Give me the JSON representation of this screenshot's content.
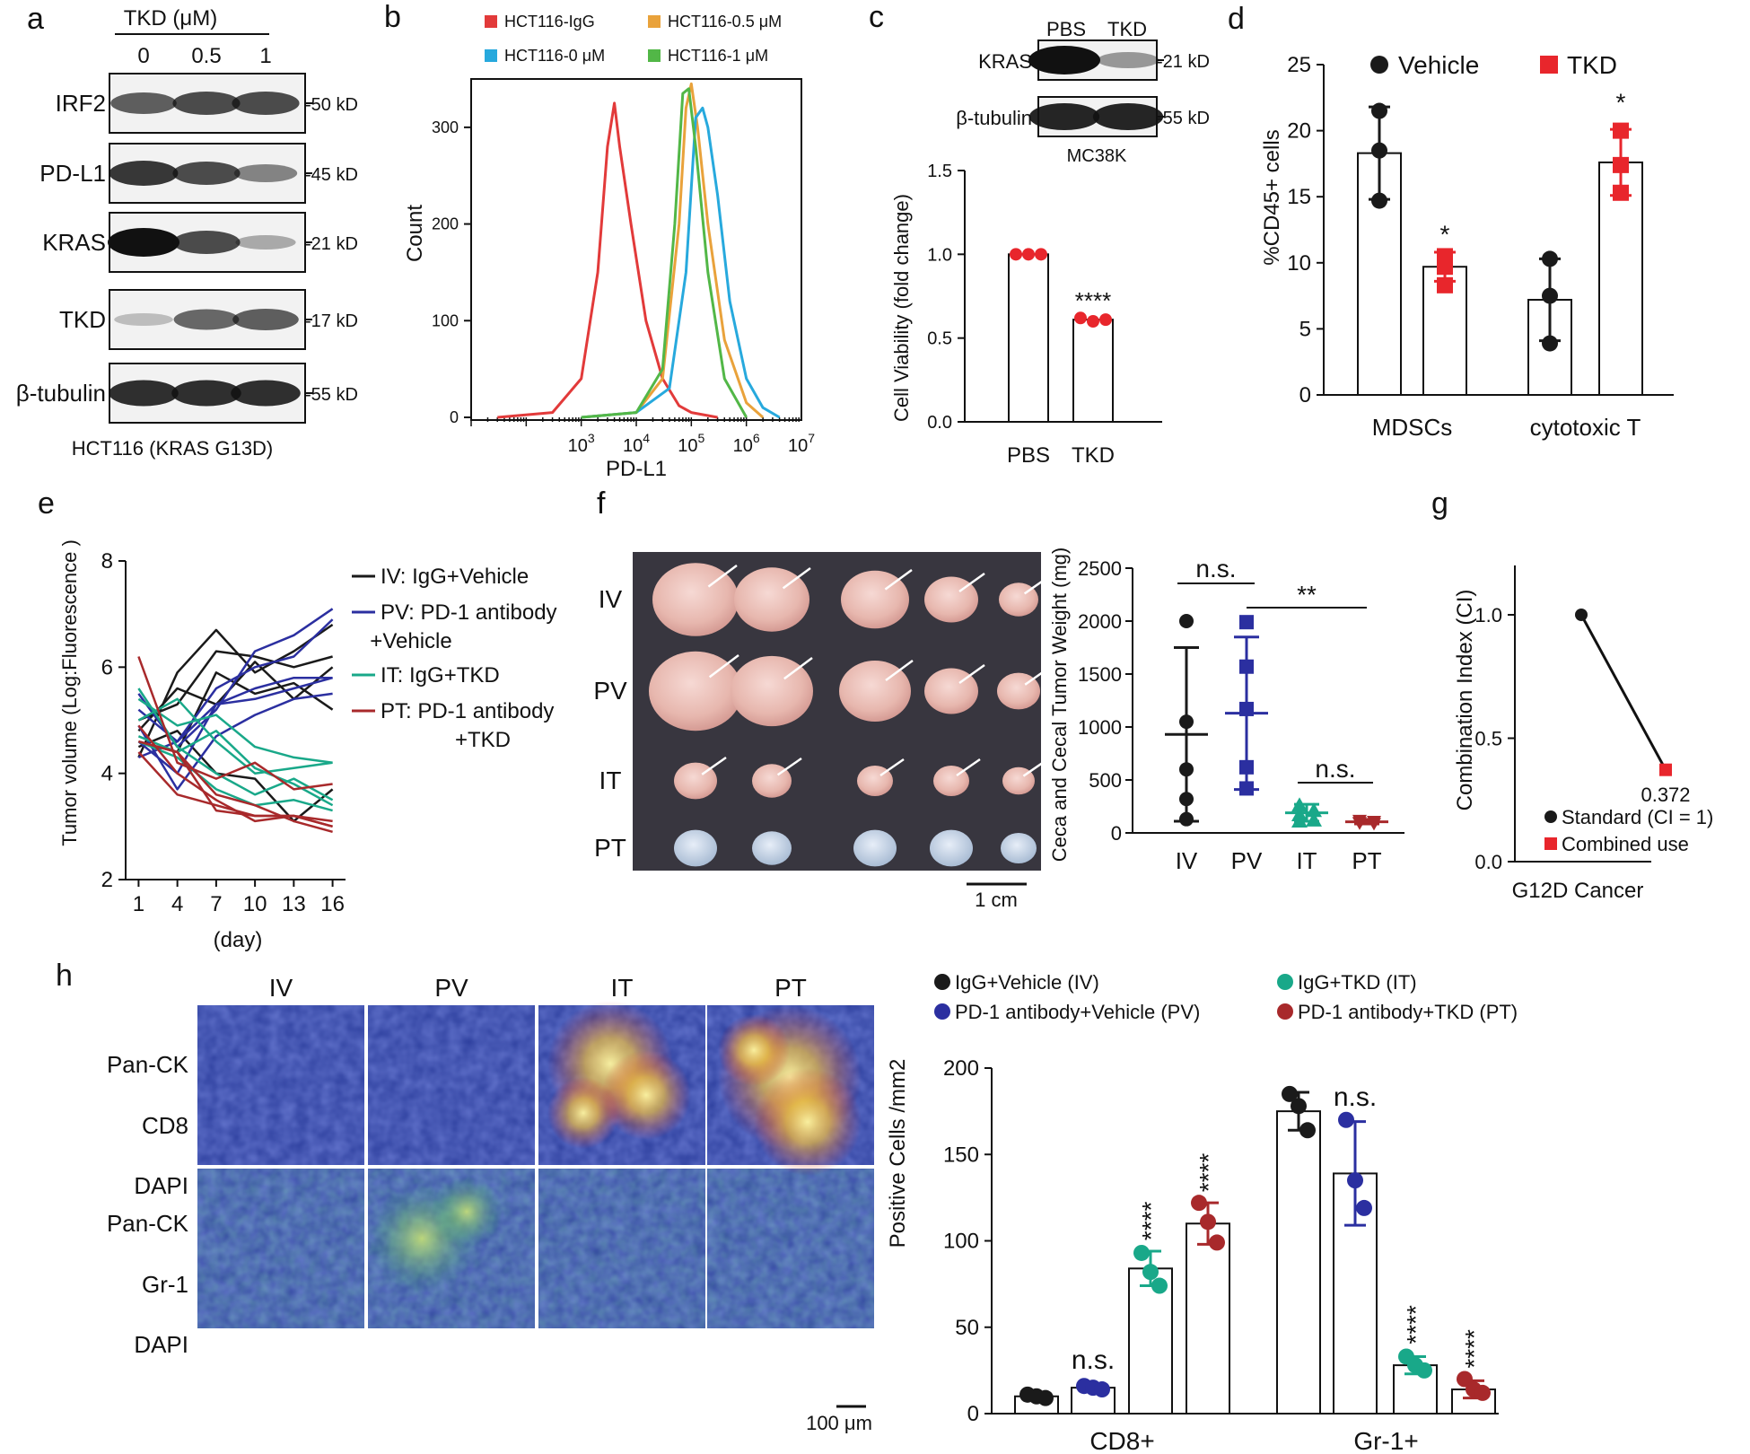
{
  "colors": {
    "red": "#e23a3a",
    "orange": "#e9a23b",
    "cyan": "#27a9dd",
    "green": "#52b747",
    "black": "#1a1a1a",
    "navy": "#2b2fa0",
    "teal": "#19a889",
    "darkred": "#a8292b",
    "d_red": "#e8262c",
    "blot_bg": "#f2f2f2",
    "dapi_blue": "#2b3d9c"
  },
  "panel_a": {
    "label": "a",
    "header": "TKD (μM)",
    "lanes": [
      "0",
      "0.5",
      "1"
    ],
    "rows": [
      {
        "name": "IRF2",
        "size": "50 kD",
        "intensity": [
          0.6,
          0.7,
          0.7
        ]
      },
      {
        "name": "PD-L1",
        "size": "45 kD",
        "intensity": [
          0.8,
          0.7,
          0.4
        ]
      },
      {
        "name": "KRAS",
        "size": "21 kD",
        "intensity": [
          1.0,
          0.7,
          0.2
        ]
      },
      {
        "name": "TKD",
        "size": "17 kD",
        "intensity": [
          0.1,
          0.55,
          0.6
        ]
      },
      {
        "name": "β-tubulin",
        "size": "55 kD",
        "intensity": [
          0.85,
          0.85,
          0.85
        ]
      }
    ],
    "caption": "HCT116 (KRAS G13D)"
  },
  "panel_c_blot": {
    "label": "c",
    "lanes": [
      "PBS",
      "TKD"
    ],
    "rows": [
      {
        "name": "KRAS",
        "size": "21 kD",
        "intensity": [
          1.0,
          0.3
        ]
      },
      {
        "name": "β-tubulin",
        "size": "55 kD",
        "intensity": [
          0.9,
          0.9
        ]
      }
    ],
    "caption": "MC38K"
  },
  "panel_f": {
    "label": "f",
    "photo_rows": [
      "IV",
      "PV",
      "IT",
      "PT"
    ],
    "scale_bar": "1 cm"
  },
  "panel_h": {
    "label": "h",
    "columns": [
      "IV",
      "PV",
      "IT",
      "PT"
    ],
    "top_stain": [
      {
        "text": "Pan-CK",
        "color": "#d93333"
      },
      {
        "text": "CD8",
        "color": "#1ea36b"
      },
      {
        "text": "DAPI",
        "color": "#2b2fa0"
      }
    ],
    "bottom_stain": [
      {
        "text": "Pan-CK",
        "color": "#1ea36b"
      },
      {
        "text": "Gr-1",
        "color": "#d93333"
      },
      {
        "text": "DAPI",
        "color": "#2b2fa0"
      }
    ],
    "scale_bar": "100 μm"
  },
  "chart_data": [
    {
      "id": "b",
      "type": "line",
      "label": "b",
      "xlabel": "PD-L1",
      "ylabel": "Count",
      "xscale": "log",
      "xlim": [
        10,
        10000000
      ],
      "ylim": [
        0,
        350
      ],
      "xticks": [
        "10^3",
        "10^4",
        "10^5",
        "10^6",
        "10^7"
      ],
      "yticks": [
        0,
        100,
        200,
        300
      ],
      "legend": [
        "HCT116-IgG",
        "HCT116-0.5 μM",
        "HCT116-0 μM",
        "HCT116-1 μM"
      ],
      "series": [
        {
          "name": "HCT116-IgG",
          "color": "#e23a3a",
          "x": [
            30,
            300,
            1000,
            2000,
            3000,
            4000,
            5000,
            8000,
            15000,
            30000,
            60000,
            100000,
            300000
          ],
          "y": [
            0,
            5,
            40,
            150,
            280,
            325,
            280,
            200,
            100,
            40,
            12,
            5,
            0
          ]
        },
        {
          "name": "HCT116-0.5 μM",
          "color": "#e9a23b",
          "x": [
            1000,
            10000,
            30000,
            60000,
            80000,
            100000,
            130000,
            200000,
            400000,
            1000000,
            2000000
          ],
          "y": [
            0,
            5,
            40,
            200,
            320,
            345,
            300,
            200,
            80,
            15,
            0
          ]
        },
        {
          "name": "HCT116-0 μM",
          "color": "#27a9dd",
          "x": [
            1000,
            10000,
            40000,
            80000,
            120000,
            160000,
            200000,
            300000,
            500000,
            1000000,
            2000000,
            4000000
          ],
          "y": [
            0,
            5,
            30,
            150,
            310,
            320,
            300,
            230,
            120,
            40,
            10,
            0
          ]
        },
        {
          "name": "HCT116-1 μM",
          "color": "#52b747",
          "x": [
            1000,
            10000,
            30000,
            50000,
            70000,
            90000,
            120000,
            200000,
            400000,
            1000000
          ],
          "y": [
            0,
            5,
            50,
            200,
            335,
            340,
            280,
            150,
            40,
            0
          ]
        }
      ]
    },
    {
      "id": "c",
      "type": "bar",
      "label": "c",
      "ylabel": "Cell Viability (fold change)",
      "categories": [
        "PBS",
        "TKD"
      ],
      "values": [
        1.0,
        0.61
      ],
      "points": [
        [
          1.0,
          1.0,
          1.0
        ],
        [
          0.62,
          0.6,
          0.61
        ]
      ],
      "ylim": [
        0,
        1.5
      ],
      "yticks": [
        "0.0",
        "0.5",
        "1.0",
        "1.5"
      ],
      "annotations": [
        "****"
      ]
    },
    {
      "id": "d",
      "type": "bar",
      "label": "d",
      "ylabel": "%CD45+ cells",
      "categories": [
        "MDSCs",
        "cytotoxic T"
      ],
      "ylim": [
        0,
        25
      ],
      "yticks": [
        0,
        5,
        10,
        15,
        20,
        25
      ],
      "legend": [
        "Vehicle",
        "TKD"
      ],
      "annotations": [
        "*",
        "*"
      ],
      "series": [
        {
          "name": "Vehicle",
          "values": [
            18.3,
            7.2
          ],
          "error": [
            3.5,
            3.1
          ],
          "points": [
            [
              21.5,
              18.5,
              14.7
            ],
            [
              10.3,
              7.5,
              3.9
            ]
          ]
        },
        {
          "name": "TKD",
          "values": [
            9.7,
            17.6
          ],
          "error": [
            1.1,
            2.5
          ],
          "points": [
            [
              10.5,
              9.7,
              8.3
            ],
            [
              20.0,
              17.4,
              15.3
            ]
          ]
        }
      ]
    },
    {
      "id": "e",
      "type": "line",
      "label": "e",
      "xlabel": "(day)",
      "ylabel": "Tumor volume (Log:Fluorescence )",
      "x": [
        1,
        4,
        7,
        10,
        13,
        16
      ],
      "ylim": [
        2,
        8
      ],
      "yticks": [
        2,
        4,
        6,
        8
      ],
      "legend": [
        "IV: IgG+Vehicle",
        "PV: PD-1 antibody",
        "+Vehicle",
        "IT: IgG+TKD",
        "PT: PD-1 antibody",
        "+TKD"
      ],
      "series": [
        {
          "group": "IV",
          "values": [
            4.3,
            5.9,
            6.7,
            5.9,
            6.3,
            6.8
          ]
        },
        {
          "group": "IV",
          "values": [
            5.0,
            5.3,
            6.3,
            6.2,
            6.0,
            6.2
          ]
        },
        {
          "group": "IV",
          "values": [
            4.6,
            4.4,
            5.9,
            5.5,
            5.7,
            5.2
          ]
        },
        {
          "group": "IV",
          "values": [
            4.8,
            5.6,
            5.3,
            6.1,
            5.4,
            6.0
          ]
        },
        {
          "group": "IV",
          "values": [
            4.5,
            4.8,
            4.0,
            3.9,
            3.1,
            3.7
          ]
        },
        {
          "group": "PV",
          "values": [
            5.5,
            4.5,
            5.2,
            6.3,
            6.6,
            7.1
          ]
        },
        {
          "group": "PV",
          "values": [
            5.2,
            4.6,
            5.6,
            6.0,
            6.2,
            6.9
          ]
        },
        {
          "group": "PV",
          "values": [
            4.6,
            4.0,
            5.3,
            5.6,
            5.8,
            5.8
          ]
        },
        {
          "group": "PV",
          "values": [
            4.3,
            4.6,
            5.3,
            5.4,
            5.6,
            5.8
          ]
        },
        {
          "group": "PV",
          "values": [
            4.9,
            3.7,
            4.7,
            5.1,
            5.4,
            5.5
          ]
        },
        {
          "group": "IT",
          "values": [
            5.4,
            4.9,
            5.1,
            4.5,
            4.3,
            4.2
          ]
        },
        {
          "group": "IT",
          "values": [
            5.0,
            5.4,
            4.6,
            4.0,
            4.1,
            4.2
          ]
        },
        {
          "group": "IT",
          "values": [
            4.7,
            4.4,
            4.8,
            4.1,
            3.8,
            3.4
          ]
        },
        {
          "group": "IT",
          "values": [
            5.6,
            4.5,
            4.0,
            3.6,
            3.9,
            3.5
          ]
        },
        {
          "group": "IT",
          "values": [
            4.6,
            4.3,
            3.7,
            3.4,
            3.5,
            3.3
          ]
        },
        {
          "group": "PT",
          "values": [
            6.2,
            4.2,
            3.9,
            4.2,
            3.7,
            3.8
          ]
        },
        {
          "group": "PT",
          "values": [
            4.9,
            4.0,
            3.5,
            3.1,
            3.2,
            3.1
          ]
        },
        {
          "group": "PT",
          "values": [
            4.6,
            4.4,
            3.3,
            3.2,
            3.2,
            3.0
          ]
        },
        {
          "group": "PT",
          "values": [
            4.4,
            3.6,
            3.4,
            3.2,
            3.2,
            3.0
          ]
        },
        {
          "group": "PT",
          "values": [
            4.6,
            4.4,
            3.6,
            3.4,
            3.1,
            2.9
          ]
        }
      ]
    },
    {
      "id": "f",
      "type": "scatter",
      "label": "f",
      "ylabel": "Ceca and Cecal Tumor Weight (mg)",
      "categories": [
        "IV",
        "PV",
        "IT",
        "PT"
      ],
      "ylim": [
        0,
        2500
      ],
      "yticks": [
        0,
        500,
        1000,
        1500,
        2000,
        2500
      ],
      "annotations": [
        "n.s.",
        "**",
        "n.s."
      ],
      "groups": [
        {
          "name": "IV",
          "mean": 930,
          "sd": 820,
          "points": [
            2000,
            1050,
            600,
            320,
            130
          ]
        },
        {
          "name": "PV",
          "mean": 1130,
          "sd": 720,
          "points": [
            1990,
            1570,
            1170,
            620,
            420
          ]
        },
        {
          "name": "IT",
          "mean": 190,
          "sd": 80,
          "points": [
            260,
            210,
            170,
            120,
            110
          ]
        },
        {
          "name": "PT",
          "mean": 105,
          "sd": 20,
          "points": [
            120,
            110,
            100,
            90,
            95
          ]
        }
      ]
    },
    {
      "id": "g",
      "type": "scatter",
      "label": "g",
      "xlabel": "G12D Cancer",
      "ylabel": "Combination Index (CI)",
      "ylim": [
        0,
        1.2
      ],
      "yticks": [
        "0.0",
        "0.5",
        "1.0"
      ],
      "legend": [
        "Standard (CI = 1)",
        "Combined use"
      ],
      "points": [
        {
          "name": "Standard (CI = 1)",
          "y": 1.0
        },
        {
          "name": "Combined use",
          "y": 0.372,
          "label": "0.372"
        }
      ]
    },
    {
      "id": "h",
      "type": "bar",
      "label": "h",
      "ylabel": "Positive Cells /mm2",
      "categories": [
        "CD8+",
        "Gr-1+"
      ],
      "ylim": [
        0,
        200
      ],
      "yticks": [
        0,
        50,
        100,
        150,
        200
      ],
      "legend": [
        "IgG+Vehicle (IV)",
        "IgG+TKD (IT)",
        "PD-1 antibody+Vehicle (PV)",
        "PD-1 antibody+TKD (PT)"
      ],
      "annotations": [
        "n.s.",
        "****",
        "****",
        "n.s.",
        "****",
        "****"
      ],
      "series": [
        {
          "name": "IgG+Vehicle (IV)",
          "values": [
            10,
            175
          ],
          "error": [
            1,
            11
          ],
          "points": [
            [
              11,
              10,
              9
            ],
            [
              185,
              178,
              164
            ]
          ]
        },
        {
          "name": "PD-1 antibody+Vehicle (PV)",
          "values": [
            15,
            139
          ],
          "error": [
            1,
            30
          ],
          "points": [
            [
              16,
              15,
              14
            ],
            [
              170,
              135,
              119
            ]
          ]
        },
        {
          "name": "IgG+TKD (IT)",
          "values": [
            84,
            28
          ],
          "error": [
            10,
            5
          ],
          "points": [
            [
              93,
              82,
              74
            ],
            [
              33,
              28,
              25
            ]
          ]
        },
        {
          "name": "PD-1 antibody+TKD (PT)",
          "values": [
            110,
            14
          ],
          "error": [
            12,
            5
          ],
          "points": [
            [
              122,
              111,
              99
            ],
            [
              20,
              14,
              12
            ]
          ]
        }
      ]
    }
  ]
}
